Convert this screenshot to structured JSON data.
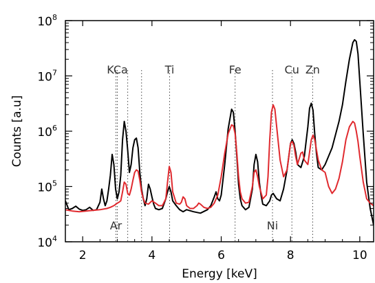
{
  "chart_data": {
    "type": "line",
    "xlabel": "Energy [keV]",
    "ylabel": "Counts [a.u]",
    "xlim": [
      1.5,
      10.4
    ],
    "ylim": [
      10000,
      100000000
    ],
    "yscale": "log",
    "x_ticks": [
      2,
      4,
      6,
      8,
      10
    ],
    "y_ticks": [
      {
        "base": "10",
        "exp": "4",
        "value": 10000
      },
      {
        "base": "10",
        "exp": "5",
        "value": 100000
      },
      {
        "base": "10",
        "exp": "6",
        "value": 1000000
      },
      {
        "base": "10",
        "exp": "7",
        "value": 10000000
      },
      {
        "base": "10",
        "exp": "8",
        "value": 100000000
      }
    ],
    "grid": false,
    "series": [
      {
        "color": "#000000",
        "x": [
          1.5,
          1.6,
          1.7,
          1.8,
          1.9,
          2.0,
          2.1,
          2.2,
          2.3,
          2.4,
          2.5,
          2.55,
          2.6,
          2.65,
          2.7,
          2.75,
          2.8,
          2.85,
          2.9,
          2.95,
          3.0,
          3.05,
          3.1,
          3.15,
          3.2,
          3.25,
          3.3,
          3.35,
          3.4,
          3.45,
          3.5,
          3.55,
          3.6,
          3.65,
          3.7,
          3.75,
          3.8,
          3.85,
          3.9,
          3.95,
          4.0,
          4.05,
          4.1,
          4.2,
          4.3,
          4.4,
          4.45,
          4.5,
          4.55,
          4.6,
          4.7,
          4.8,
          4.9,
          5.0,
          5.2,
          5.4,
          5.6,
          5.7,
          5.8,
          5.85,
          5.9,
          5.95,
          6.0,
          6.1,
          6.2,
          6.3,
          6.35,
          6.4,
          6.45,
          6.5,
          6.55,
          6.6,
          6.7,
          6.8,
          6.9,
          6.95,
          7.0,
          7.05,
          7.1,
          7.15,
          7.2,
          7.3,
          7.4,
          7.45,
          7.5,
          7.6,
          7.7,
          7.8,
          7.9,
          8.0,
          8.05,
          8.1,
          8.15,
          8.2,
          8.3,
          8.4,
          8.5,
          8.55,
          8.6,
          8.65,
          8.7,
          8.75,
          8.8,
          8.9,
          9.0,
          9.2,
          9.4,
          9.5,
          9.6,
          9.7,
          9.8,
          9.85,
          9.9,
          9.95,
          10.0,
          10.1,
          10.2,
          10.3,
          10.4
        ],
        "y": [
          55000,
          38000,
          40000,
          44000,
          39000,
          37000,
          38000,
          42000,
          37000,
          38000,
          52000,
          90000,
          60000,
          45000,
          55000,
          90000,
          160000,
          380000,
          250000,
          90000,
          60000,
          80000,
          160000,
          700000,
          1500000,
          1000000,
          450000,
          180000,
          250000,
          500000,
          700000,
          750000,
          500000,
          180000,
          90000,
          60000,
          45000,
          60000,
          110000,
          90000,
          65000,
          48000,
          40000,
          38000,
          40000,
          60000,
          80000,
          100000,
          80000,
          55000,
          45000,
          38000,
          35000,
          38000,
          35000,
          33000,
          38000,
          45000,
          65000,
          80000,
          60000,
          55000,
          70000,
          250000,
          1100000,
          2500000,
          2200000,
          1000000,
          350000,
          110000,
          60000,
          45000,
          38000,
          42000,
          90000,
          250000,
          380000,
          280000,
          120000,
          70000,
          48000,
          45000,
          55000,
          70000,
          75000,
          60000,
          55000,
          90000,
          200000,
          600000,
          700000,
          600000,
          420000,
          250000,
          220000,
          350000,
          1200000,
          2600000,
          3200000,
          2400000,
          900000,
          400000,
          220000,
          200000,
          250000,
          500000,
          1500000,
          3000000,
          8000000,
          20000000,
          40000000,
          45000000,
          42000000,
          25000000,
          8000000,
          900000,
          120000,
          40000,
          20000
        ]
      },
      {
        "color": "#e0292e",
        "x": [
          1.5,
          1.7,
          1.9,
          2.1,
          2.3,
          2.5,
          2.7,
          2.8,
          2.9,
          3.0,
          3.05,
          3.1,
          3.15,
          3.2,
          3.25,
          3.3,
          3.35,
          3.4,
          3.45,
          3.5,
          3.55,
          3.6,
          3.65,
          3.7,
          3.75,
          3.8,
          3.9,
          4.0,
          4.1,
          4.2,
          4.3,
          4.4,
          4.45,
          4.5,
          4.55,
          4.6,
          4.7,
          4.8,
          4.85,
          4.9,
          4.95,
          5.0,
          5.1,
          5.2,
          5.3,
          5.35,
          5.4,
          5.5,
          5.6,
          5.7,
          5.8,
          5.9,
          6.0,
          6.1,
          6.2,
          6.3,
          6.35,
          6.4,
          6.45,
          6.5,
          6.55,
          6.6,
          6.7,
          6.8,
          6.9,
          6.95,
          7.0,
          7.05,
          7.1,
          7.2,
          7.3,
          7.35,
          7.4,
          7.45,
          7.5,
          7.55,
          7.6,
          7.7,
          7.8,
          7.9,
          8.0,
          8.05,
          8.1,
          8.15,
          8.2,
          8.3,
          8.35,
          8.4,
          8.5,
          8.6,
          8.65,
          8.7,
          8.8,
          8.9,
          9.0,
          9.1,
          9.2,
          9.3,
          9.4,
          9.5,
          9.6,
          9.7,
          9.8,
          9.85,
          9.9,
          9.95,
          10.0,
          10.1,
          10.2,
          10.3,
          10.4
        ],
        "y": [
          38000,
          36000,
          35000,
          36000,
          37000,
          38000,
          40000,
          42000,
          45000,
          50000,
          52000,
          55000,
          80000,
          120000,
          110000,
          75000,
          70000,
          90000,
          130000,
          180000,
          200000,
          190000,
          130000,
          80000,
          60000,
          50000,
          48000,
          55000,
          50000,
          45000,
          45000,
          60000,
          120000,
          230000,
          180000,
          80000,
          50000,
          48000,
          52000,
          65000,
          60000,
          45000,
          40000,
          40000,
          45000,
          50000,
          48000,
          42000,
          40000,
          42000,
          50000,
          70000,
          150000,
          400000,
          900000,
          1300000,
          1250000,
          900000,
          400000,
          150000,
          80000,
          60000,
          50000,
          52000,
          100000,
          180000,
          200000,
          150000,
          100000,
          60000,
          70000,
          150000,
          700000,
          2200000,
          3000000,
          2500000,
          1200000,
          300000,
          150000,
          200000,
          600000,
          650000,
          550000,
          350000,
          250000,
          400000,
          420000,
          300000,
          250000,
          700000,
          850000,
          700000,
          300000,
          200000,
          180000,
          100000,
          75000,
          90000,
          140000,
          280000,
          700000,
          1200000,
          1500000,
          1400000,
          1000000,
          650000,
          350000,
          120000,
          60000,
          50000,
          45000
        ]
      }
    ],
    "markers": [
      {
        "label": "KCa",
        "x": 3.0,
        "label_x": 3.0,
        "label_pos": "top"
      },
      {
        "label": "",
        "x": 3.3,
        "label_x": 3.3,
        "label_pos": "top"
      },
      {
        "label": "",
        "x": 3.7,
        "label_x": 3.7,
        "label_pos": "top"
      },
      {
        "label": "Ti",
        "x": 4.51,
        "label_x": 4.51,
        "label_pos": "top"
      },
      {
        "label": "Fe",
        "x": 6.4,
        "label_x": 6.4,
        "label_pos": "top"
      },
      {
        "label": "Cu",
        "x": 7.48,
        "label_x": 8.04,
        "label_pos": "top"
      },
      {
        "label": "Zn",
        "x": 8.04,
        "label_x": 8.64,
        "label_pos": "top"
      },
      {
        "label": "",
        "x": 8.64,
        "label_x": 8.64,
        "label_pos": "top"
      },
      {
        "label": "Ar",
        "x": 2.96,
        "label_x": 2.96,
        "label_pos": "bottom"
      },
      {
        "label": "Ni",
        "x": 7.48,
        "label_x": 7.48,
        "label_pos": "bottom"
      }
    ]
  }
}
